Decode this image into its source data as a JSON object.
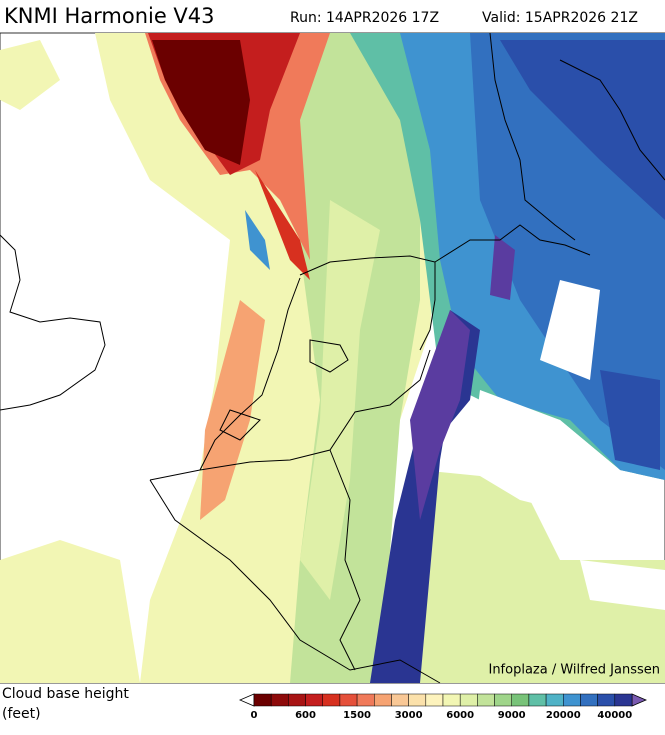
{
  "header": {
    "title": "KNMI Harmonie V43",
    "run": "Run: 14APR2026 17Z",
    "valid": "Valid: 15APR2026 21Z"
  },
  "credit": "Infoplaza / Wilfred Janssen",
  "legend": {
    "title": [
      "Cloud base height",
      "(feet)"
    ],
    "ticks": [
      0,
      600,
      1500,
      3000,
      6000,
      9000,
      20000,
      40000
    ],
    "colors": [
      "#6b0000",
      "#8e0a0a",
      "#a81414",
      "#c41e1e",
      "#d7301f",
      "#e5503a",
      "#f07a5a",
      "#f6a372",
      "#f9c896",
      "#fbe1ab",
      "#fdf3bd",
      "#f2f6b4",
      "#dff0a8",
      "#c2e39a",
      "#9fd58a",
      "#78c379",
      "#5fbfa6",
      "#4fb2c6",
      "#3f93d0",
      "#3270bf",
      "#2a4faa",
      "#2a3592"
    ],
    "under": "#ffffff",
    "over": "#7a5ab0"
  }
}
